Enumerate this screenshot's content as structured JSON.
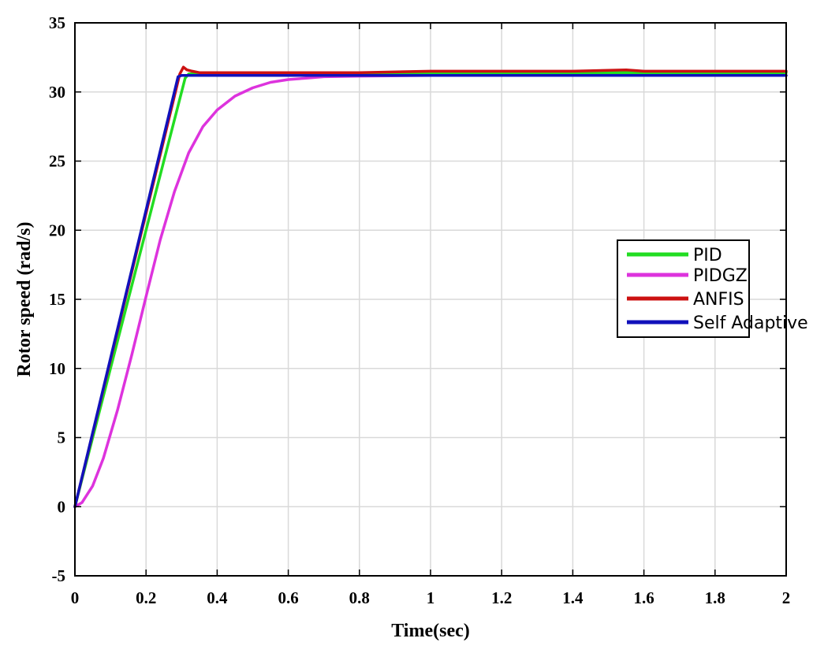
{
  "chart_data": {
    "type": "line",
    "title": "",
    "xlabel": "Time(sec)",
    "ylabel": "Rotor speed (rad/s)",
    "xlim": [
      0,
      2
    ],
    "ylim": [
      -5,
      35
    ],
    "grid": true,
    "legend_position": "right",
    "x_ticks": [
      0,
      0.2,
      0.4,
      0.6,
      0.8,
      1,
      1.2,
      1.4,
      1.6,
      1.8,
      2
    ],
    "x_tick_labels": [
      "0",
      "0.2",
      "0.4",
      "0.6",
      "0.8",
      "1",
      "1.2",
      "1.4",
      "1.6",
      "1.8",
      "2"
    ],
    "y_ticks": [
      -5,
      0,
      5,
      10,
      15,
      20,
      25,
      30,
      35
    ],
    "y_tick_labels": [
      "-5",
      "0",
      "5",
      "10",
      "15",
      "20",
      "25",
      "30",
      "35"
    ],
    "series": [
      {
        "name": "PID",
        "color": "#22dd22",
        "x": [
          0,
          0.31,
          0.32,
          0.4,
          0.6,
          0.8,
          1.0,
          1.2,
          1.4,
          1.6,
          1.8,
          2.0
        ],
        "y": [
          0,
          31.0,
          31.3,
          31.4,
          31.4,
          31.4,
          31.4,
          31.4,
          31.4,
          31.4,
          31.4,
          31.4
        ]
      },
      {
        "name": "PIDGZ",
        "color": "#dd33dd",
        "x": [
          0,
          0.02,
          0.05,
          0.08,
          0.12,
          0.16,
          0.2,
          0.24,
          0.28,
          0.32,
          0.36,
          0.4,
          0.45,
          0.5,
          0.55,
          0.6,
          0.65,
          0.7,
          0.8,
          1.0,
          1.5,
          2.0
        ],
        "y": [
          0,
          0.3,
          1.5,
          3.5,
          7.0,
          11.0,
          15.2,
          19.3,
          22.8,
          25.6,
          27.5,
          28.7,
          29.7,
          30.3,
          30.7,
          30.9,
          31.0,
          31.1,
          31.15,
          31.2,
          31.2,
          31.2
        ]
      },
      {
        "name": "ANFIS",
        "color": "#cc1111",
        "x": [
          0,
          0.295,
          0.305,
          0.315,
          0.33,
          0.35,
          0.4,
          0.5,
          0.6,
          0.8,
          1.0,
          1.2,
          1.4,
          1.55,
          1.6,
          1.8,
          2.0
        ],
        "y": [
          0,
          31.3,
          31.8,
          31.6,
          31.5,
          31.4,
          31.4,
          31.4,
          31.4,
          31.4,
          31.5,
          31.5,
          31.5,
          31.6,
          31.5,
          31.5,
          31.5
        ]
      },
      {
        "name": "Self Adaptive",
        "color": "#1111bb",
        "x": [
          0,
          0.29,
          0.3,
          0.4,
          0.6,
          0.8,
          1.0,
          1.2,
          1.4,
          1.6,
          1.8,
          2.0
        ],
        "y": [
          0,
          31.1,
          31.2,
          31.2,
          31.2,
          31.2,
          31.2,
          31.2,
          31.2,
          31.2,
          31.2,
          31.2
        ]
      }
    ]
  }
}
